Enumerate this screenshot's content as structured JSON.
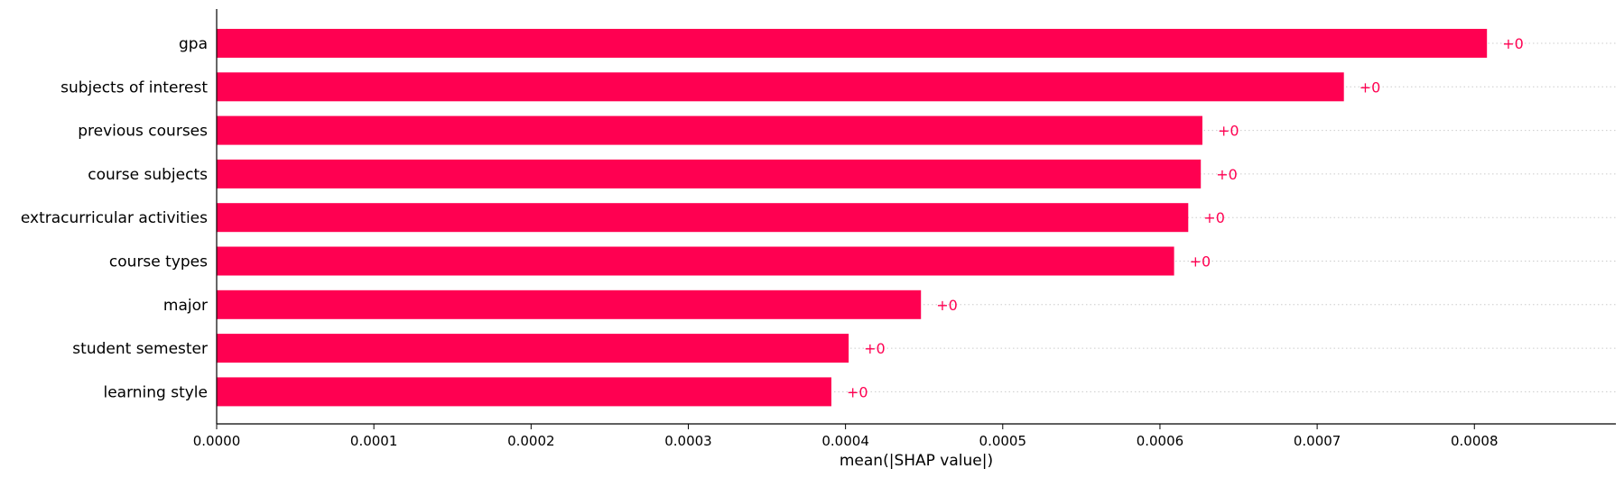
{
  "chart_data": {
    "type": "bar",
    "orientation": "horizontal",
    "categories": [
      "gpa",
      "subjects of interest",
      "previous courses",
      "course subjects",
      "extracurricular activities",
      "course types",
      "major",
      "student semester",
      "learning style"
    ],
    "values": [
      0.000808,
      0.000717,
      0.000627,
      0.000626,
      0.000618,
      0.000609,
      0.000448,
      0.000402,
      0.000391
    ],
    "value_labels": [
      "+0",
      "+0",
      "+0",
      "+0",
      "+0",
      "+0",
      "+0",
      "+0",
      "+0"
    ],
    "xlabel": "mean(|SHAP value|)",
    "xlim": [
      0,
      0.00089
    ],
    "xticks": [
      0,
      0.0001,
      0.0002,
      0.0003,
      0.0004,
      0.0005,
      0.0006,
      0.0007,
      0.0008
    ],
    "xtick_labels": [
      "0.0000",
      "0.0001",
      "0.0002",
      "0.0003",
      "0.0004",
      "0.0005",
      "0.0006",
      "0.0007",
      "0.0008"
    ],
    "bar_color": "#ff0051",
    "label_color": "#ff0051",
    "gridlines": "dotted horizontal guides per category"
  }
}
